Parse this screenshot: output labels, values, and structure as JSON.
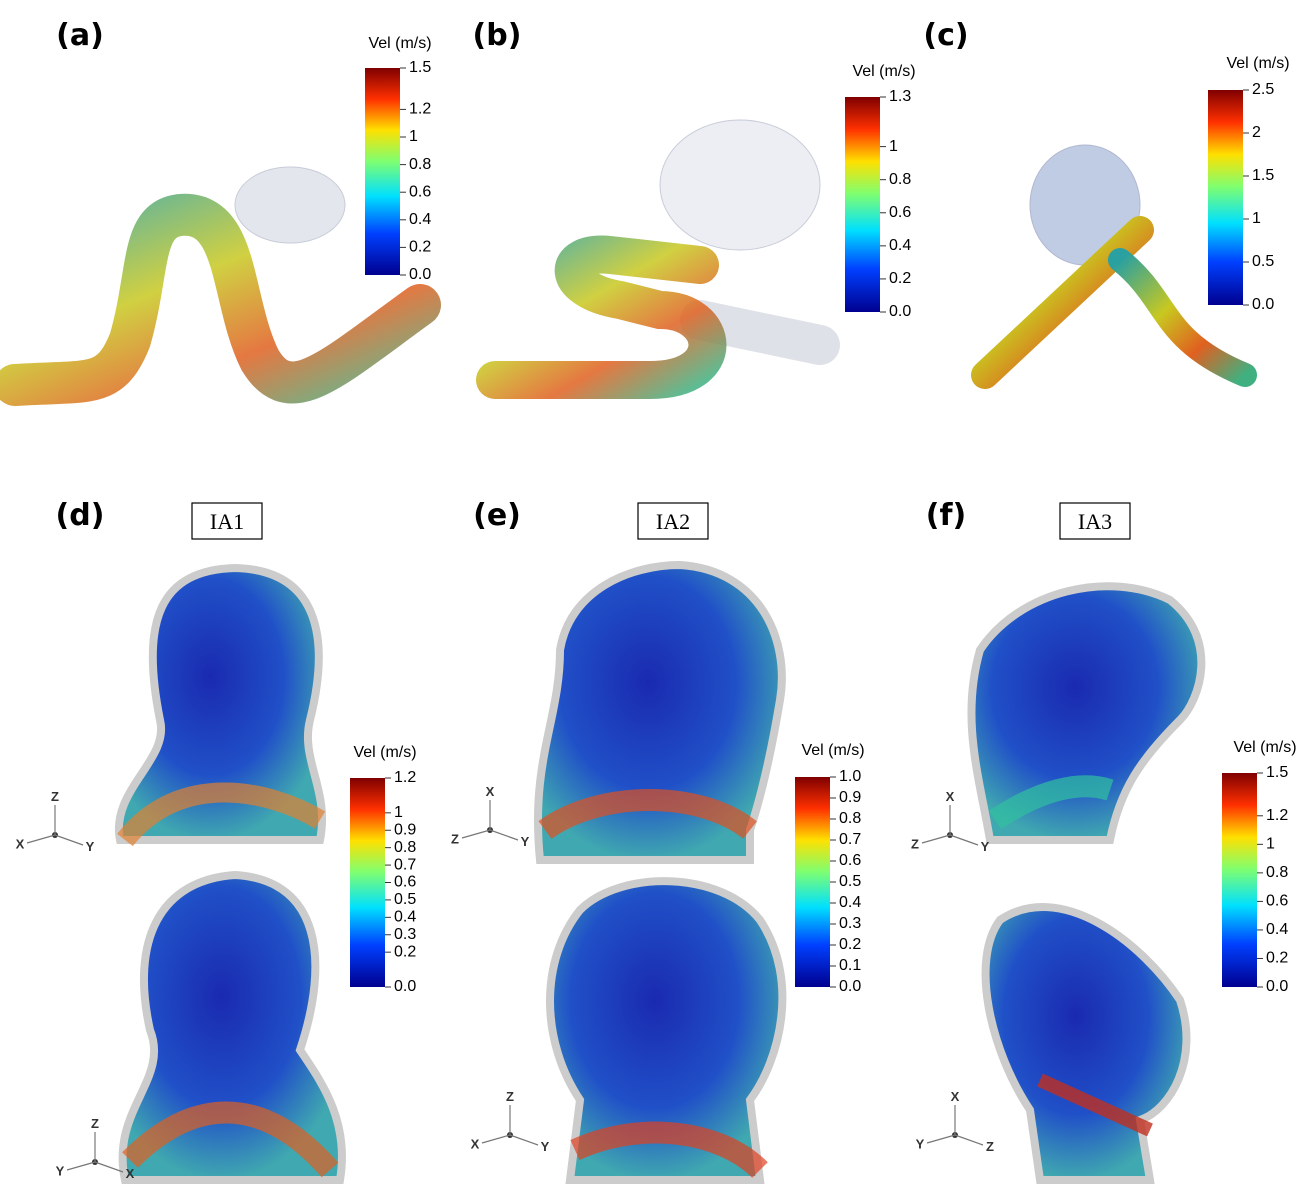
{
  "panels": [
    {
      "label": "(a)",
      "colorbar": {
        "title": "Vel (m/s)",
        "range": [
          0,
          1.5
        ],
        "ticks": [
          {
            "value": 0,
            "label": "0.0"
          },
          0.2,
          0.4,
          0.6,
          0.8,
          1,
          1.2,
          1.5
        ]
      }
    },
    {
      "label": "(b)",
      "colorbar": {
        "title": "Vel (m/s)",
        "range": [
          0,
          1.3
        ],
        "ticks": [
          {
            "value": 0,
            "label": "0.0"
          },
          0.2,
          0.4,
          0.6,
          0.8,
          1,
          1.3
        ]
      }
    },
    {
      "label": "(c)",
      "colorbar": {
        "title": "Vel (m/s)",
        "range": [
          0,
          2.5
        ],
        "ticks": [
          {
            "value": 0,
            "label": "0.0"
          },
          0.5,
          1,
          1.5,
          2,
          2.5
        ]
      }
    },
    {
      "label": "(d)",
      "case": "IA1",
      "colorbar": {
        "title": "Vel (m/s)",
        "range": [
          0,
          1.2
        ],
        "ticks": [
          {
            "value": 0,
            "label": "0.0"
          },
          0.2,
          0.3,
          0.4,
          0.5,
          0.6,
          0.7,
          0.8,
          0.9,
          1,
          1.2
        ]
      },
      "triads": [
        [
          "Z",
          "X",
          "Y"
        ],
        [
          "Z",
          "Y",
          "X"
        ]
      ]
    },
    {
      "label": "(e)",
      "case": "IA2",
      "colorbar": {
        "title": "Vel (m/s)",
        "range": [
          0,
          1
        ],
        "ticks": [
          {
            "value": 0,
            "label": "0.0"
          },
          0.1,
          0.2,
          0.3,
          0.4,
          0.5,
          0.6,
          0.7,
          0.8,
          0.9,
          {
            "value": 1,
            "label": "1.0"
          }
        ]
      },
      "triads": [
        [
          "X",
          "Z",
          "Y"
        ],
        [
          "Z",
          "X",
          "Y"
        ]
      ]
    },
    {
      "label": "(f)",
      "case": "IA3",
      "colorbar": {
        "title": "Vel (m/s)",
        "range": [
          0,
          1.5
        ],
        "ticks": [
          {
            "value": 0,
            "label": "0.0"
          },
          0.2,
          0.4,
          0.6,
          0.8,
          1,
          1.2,
          1.5
        ]
      },
      "triads": [
        [
          "X",
          "Z",
          "Y"
        ],
        [
          "X",
          "Y",
          "Z"
        ]
      ]
    }
  ]
}
